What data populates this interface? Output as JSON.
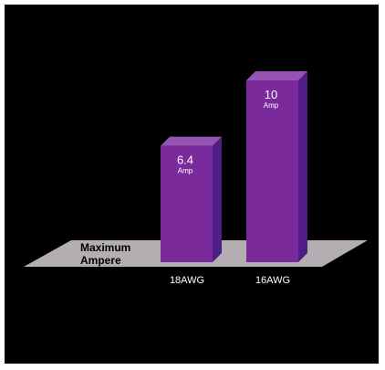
{
  "chart_data": {
    "type": "bar",
    "categories": [
      "18AWG",
      "16AWG"
    ],
    "values": [
      6.4,
      10
    ],
    "value_labels": [
      {
        "number": "6.4",
        "unit": "Amp"
      },
      {
        "number": "10",
        "unit": "Amp"
      }
    ],
    "row_label": [
      "Maximum",
      "Ampere"
    ],
    "ylim": [
      0,
      10
    ],
    "grid": false,
    "legend": "none",
    "style": "3d"
  },
  "colors": {
    "background": "#000000",
    "border": "#ffffff",
    "floor": "#b4aeb2",
    "bar_front": "#7a2a9a",
    "bar_side": "#4f1d86",
    "bar_top": "#9553b4",
    "value_text": "#ffffff",
    "category_text": "#ffffff",
    "row_label_text": "#000000"
  }
}
